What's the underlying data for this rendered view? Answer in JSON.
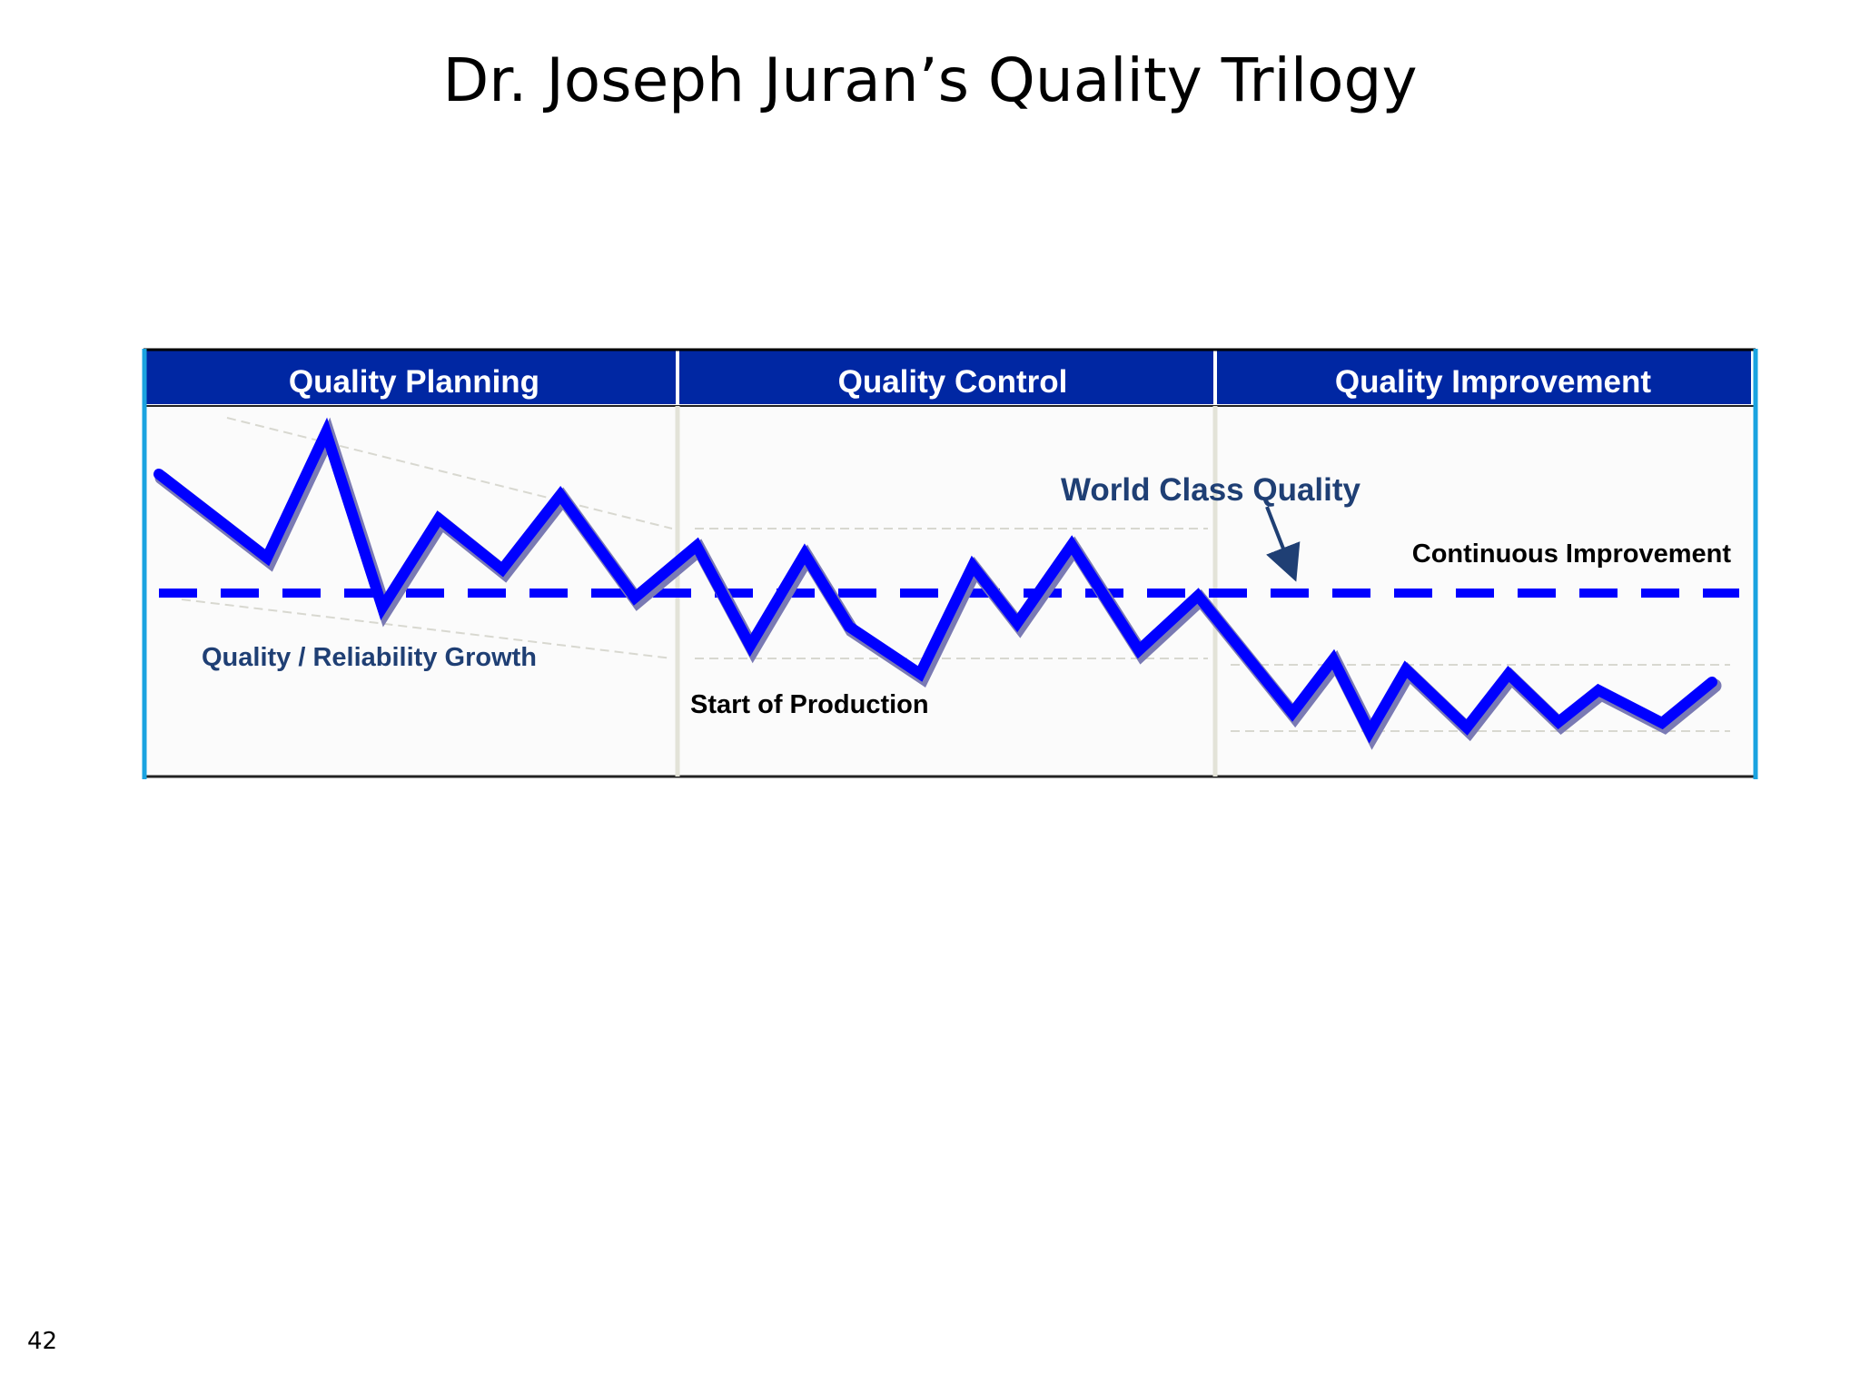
{
  "title": "Dr. Joseph Juran’s Quality Trilogy",
  "page_number": "42",
  "phases": [
    {
      "label": "Quality Planning"
    },
    {
      "label": "Quality Control"
    },
    {
      "label": "Quality Improvement"
    }
  ],
  "annotations": {
    "world_class": "World Class Quality",
    "continuous": "Continuous Improvement",
    "growth": "Quality / Reliability Growth",
    "start": "Start of Production"
  },
  "colors": {
    "header_bg": "#0027a3",
    "frame_accent": "#1aa3e0",
    "line": "#0000ff",
    "line_shadow": "#7a7ab4",
    "label_navy": "#1f3f74"
  }
}
